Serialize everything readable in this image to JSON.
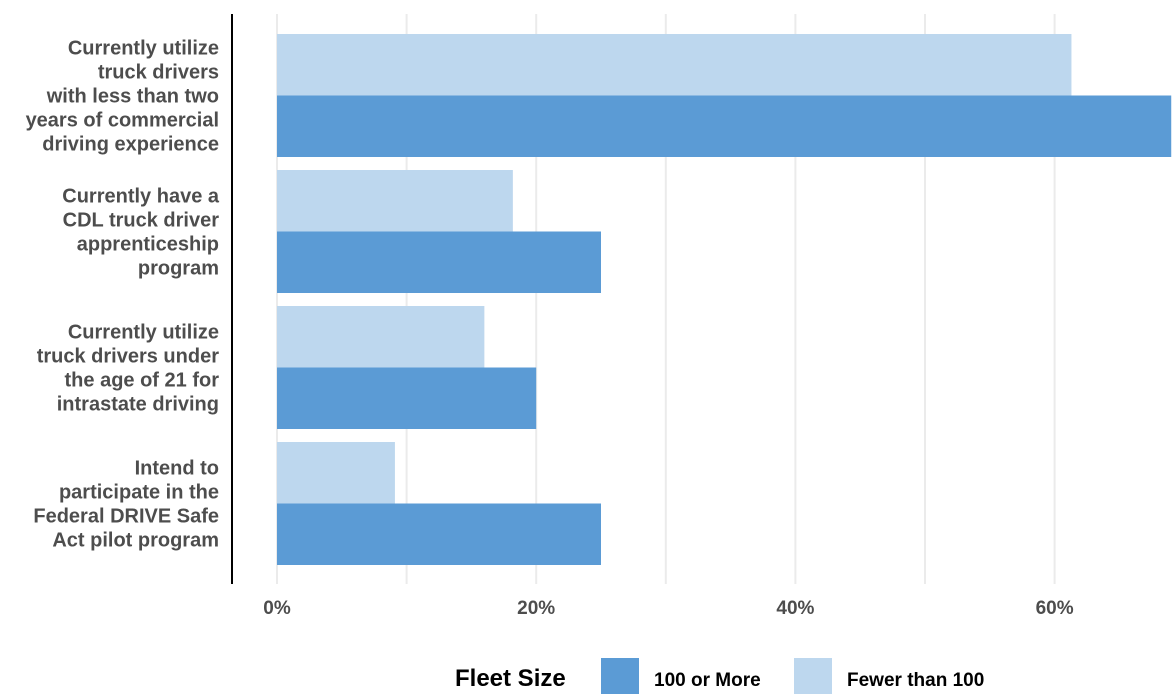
{
  "chart_data": {
    "type": "bar",
    "orientation": "horizontal",
    "title": "",
    "xlabel": "",
    "ylabel": "",
    "categories": [
      [
        "Currently utilize",
        "truck drivers",
        "with less than two",
        "years of commercial",
        "driving experience"
      ],
      [
        "Currently have a",
        "CDL truck driver",
        "apprenticeship",
        "program"
      ],
      [
        "Currently utilize",
        "truck drivers under",
        "the age of 21 for",
        "intrastate driving"
      ],
      [
        "Intend to",
        "participate in the",
        "Federal DRIVE Safe",
        "Act pilot program"
      ]
    ],
    "series": [
      {
        "name": "Fewer than 100",
        "color": "#bdd7ee",
        "values": [
          61.3,
          18.2,
          16.0,
          9.1
        ]
      },
      {
        "name": "100 or More",
        "color": "#5b9bd5",
        "values": [
          69.0,
          25.0,
          20.0,
          25.0
        ]
      }
    ],
    "xlim": [
      -3.5,
      69.0
    ],
    "xticks": [
      0,
      20,
      40,
      60
    ],
    "xtick_labels": [
      "0%",
      "20%",
      "40%",
      "60%"
    ],
    "grid": true,
    "legend": {
      "title": "Fleet Size",
      "placement": "bottom",
      "entries": [
        {
          "label": "100 or More",
          "color": "#5b9bd5"
        },
        {
          "label": "Fewer than 100",
          "color": "#bdd7ee"
        }
      ]
    }
  }
}
